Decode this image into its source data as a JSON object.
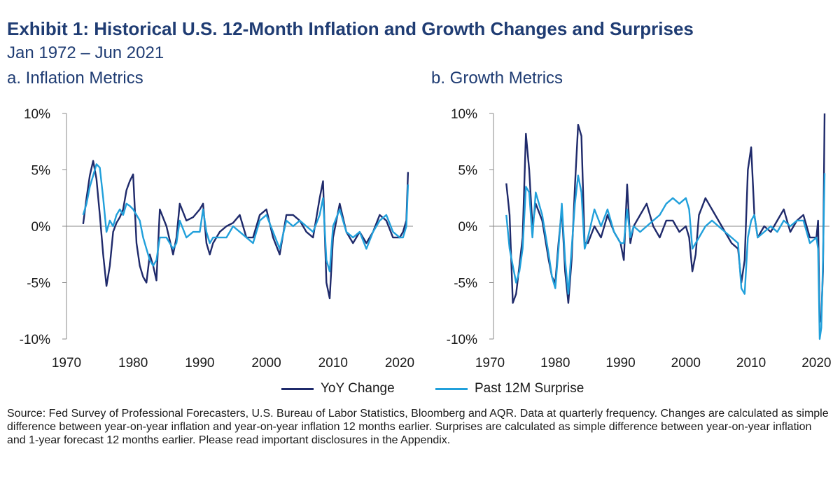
{
  "header": {
    "title": "Exhibit 1: Historical U.S. 12-Month Inflation and Growth Changes and Surprises",
    "subtitle": "Jan 1972 – Jun 2021"
  },
  "panels": [
    {
      "title": "a. Inflation Metrics"
    },
    {
      "title": "b. Growth Metrics"
    }
  ],
  "legend": [
    {
      "label": "YoY Change",
      "color": "#1f2a6b"
    },
    {
      "label": "Past 12M Surprise",
      "color": "#21a0db"
    }
  ],
  "source": "Source: Fed Survey of Professional Forecasters, U.S. Bureau of Labor Statistics, Bloomberg and AQR. Data at quarterly frequency. Changes are calculated as simple difference between year-on-year inflation and year-on-year inflation 12 months earlier. Surprises are calculated as simple difference between year-on-year inflation and 1-year forecast 12 months earlier. Please read important disclosures in the Appendix.",
  "chart_data": [
    {
      "type": "line",
      "title": "a. Inflation Metrics",
      "xlim": [
        1970,
        2022
      ],
      "ylim": [
        -10,
        10
      ],
      "x_ticks": [
        "1970",
        "1980",
        "1990",
        "2000",
        "2010",
        "2020"
      ],
      "y_ticks": [
        "10%",
        "5%",
        "0%",
        "-5%",
        "-10%"
      ],
      "grid": false,
      "series": [
        {
          "name": "YoY Change",
          "color": "#1f2a6b",
          "x": [
            1972.5,
            1973,
            1973.5,
            1974,
            1974.5,
            1975,
            1975.5,
            1976,
            1976.5,
            1977,
            1977.5,
            1978,
            1978.5,
            1979,
            1979.5,
            1980,
            1980.5,
            1981,
            1981.5,
            1982,
            1982.5,
            1983,
            1983.5,
            1984,
            1985,
            1986,
            1986.5,
            1987,
            1988,
            1989,
            1990,
            1990.5,
            1991,
            1991.5,
            1992,
            1993,
            1994,
            1995,
            1996,
            1997,
            1998,
            1999,
            2000,
            2001,
            2002,
            2003,
            2004,
            2005,
            2006,
            2007,
            2008,
            2008.5,
            2009,
            2009.5,
            2010,
            2011,
            2012,
            2013,
            2014,
            2015,
            2016,
            2017,
            2018,
            2019,
            2020,
            2020.5,
            2021,
            2021.25
          ],
          "values": [
            0.2,
            2.5,
            4.5,
            5.8,
            4.2,
            1.0,
            -2.5,
            -5.3,
            -3.5,
            -0.5,
            0.3,
            0.8,
            1.5,
            3.2,
            4.0,
            4.6,
            -1.5,
            -3.5,
            -4.5,
            -5.0,
            -2.5,
            -3.5,
            -4.8,
            1.5,
            0.0,
            -2.5,
            -1.0,
            2.0,
            0.5,
            0.8,
            1.5,
            2.0,
            -1.5,
            -2.5,
            -1.5,
            -0.5,
            0.0,
            0.3,
            1.0,
            -1.0,
            -1.0,
            1.0,
            1.5,
            -1.0,
            -2.5,
            1.0,
            1.0,
            0.5,
            -0.5,
            -1.0,
            2.5,
            4.0,
            -5.0,
            -6.4,
            -1.0,
            2.0,
            -0.5,
            -1.5,
            -0.5,
            -1.5,
            -0.5,
            1.0,
            0.5,
            -1.0,
            -1.0,
            -0.5,
            0.5,
            4.8
          ]
        },
        {
          "name": "Past 12M Surprise",
          "color": "#21a0db",
          "x": [
            1972.5,
            1973,
            1973.5,
            1974,
            1974.5,
            1975,
            1975.5,
            1976,
            1976.5,
            1977,
            1977.5,
            1978,
            1978.5,
            1979,
            1979.5,
            1980,
            1980.5,
            1981,
            1981.5,
            1982,
            1982.5,
            1983,
            1983.5,
            1984,
            1985,
            1986,
            1986.5,
            1987,
            1988,
            1989,
            1990,
            1990.5,
            1991,
            1991.5,
            1992,
            1993,
            1994,
            1995,
            1996,
            1997,
            1998,
            1999,
            2000,
            2001,
            2002,
            2003,
            2004,
            2005,
            2006,
            2007,
            2008,
            2008.5,
            2009,
            2009.5,
            2010,
            2011,
            2012,
            2013,
            2014,
            2015,
            2016,
            2017,
            2018,
            2019,
            2020,
            2020.5,
            2021,
            2021.25
          ],
          "values": [
            1.0,
            2.0,
            3.5,
            4.5,
            5.5,
            5.2,
            2.5,
            -0.5,
            0.5,
            0.0,
            1.0,
            1.5,
            1.0,
            2.0,
            1.8,
            1.5,
            1.0,
            0.5,
            -1.0,
            -2.0,
            -3.0,
            -3.5,
            -3.0,
            -1.0,
            -1.0,
            -2.0,
            -1.5,
            0.5,
            -1.0,
            -0.5,
            -0.5,
            1.5,
            -0.5,
            -1.5,
            -1.0,
            -1.0,
            -1.0,
            0.0,
            -0.5,
            -1.0,
            -1.5,
            0.5,
            1.0,
            -0.5,
            -2.0,
            0.5,
            0.0,
            0.5,
            0.0,
            -0.5,
            1.0,
            2.5,
            -3.0,
            -4.0,
            0.0,
            1.5,
            -0.5,
            -1.0,
            -0.5,
            -2.0,
            -0.5,
            0.5,
            1.0,
            -0.5,
            -1.0,
            -1.0,
            0.0,
            3.7
          ]
        }
      ]
    },
    {
      "type": "line",
      "title": "b. Growth Metrics",
      "xlim": [
        1970,
        2022
      ],
      "ylim": [
        -10,
        10
      ],
      "x_ticks": [
        "1970",
        "1980",
        "1990",
        "2000",
        "2010",
        "2020"
      ],
      "y_ticks": [
        "10%",
        "5%",
        "0%",
        "-5%",
        "-10%"
      ],
      "grid": false,
      "series": [
        {
          "name": "YoY Change",
          "color": "#1f2a6b",
          "x": [
            1972.5,
            1973,
            1973.5,
            1974,
            1974.5,
            1975,
            1975.5,
            1976,
            1976.5,
            1977,
            1978,
            1979,
            1979.5,
            1980,
            1980.5,
            1981,
            1981.5,
            1982,
            1982.5,
            1983,
            1983.5,
            1984,
            1984.5,
            1985,
            1986,
            1987,
            1988,
            1989,
            1990,
            1990.5,
            1991,
            1991.5,
            1992,
            1993,
            1994,
            1995,
            1996,
            1997,
            1998,
            1999,
            2000,
            2000.5,
            2001,
            2001.5,
            2002,
            2003,
            2004,
            2005,
            2006,
            2007,
            2008,
            2008.5,
            2009,
            2009.5,
            2010,
            2010.5,
            2011,
            2012,
            2013,
            2014,
            2015,
            2016,
            2017,
            2018,
            2019,
            2020,
            2020.25,
            2020.5,
            2020.75,
            2021,
            2021.25
          ],
          "values": [
            3.8,
            1.0,
            -6.8,
            -6.0,
            -3.5,
            -1.0,
            8.2,
            5.0,
            0.0,
            2.0,
            0.5,
            -3.0,
            -4.5,
            -5.0,
            -1.5,
            1.5,
            -4.0,
            -6.8,
            -3.0,
            3.5,
            9.0,
            8.0,
            -1.5,
            -1.5,
            0.0,
            -1.0,
            1.0,
            -0.5,
            -1.5,
            -3.0,
            3.7,
            -1.5,
            0.0,
            1.0,
            2.0,
            0.0,
            -1.0,
            0.5,
            0.5,
            -0.5,
            0.0,
            -1.0,
            -4.0,
            -2.5,
            1.0,
            2.5,
            1.5,
            0.5,
            -0.5,
            -1.5,
            -2.0,
            -5.0,
            -3.0,
            5.0,
            7.0,
            1.0,
            -1.0,
            0.0,
            -0.5,
            0.5,
            1.5,
            -0.5,
            0.5,
            1.0,
            -1.0,
            -1.0,
            0.5,
            -8.5,
            -8.0,
            -4.0,
            10.0
          ]
        },
        {
          "name": "Past 12M Surprise",
          "color": "#21a0db",
          "x": [
            1972.5,
            1973,
            1973.5,
            1974,
            1974.5,
            1975,
            1975.5,
            1976,
            1976.5,
            1977,
            1978,
            1979,
            1979.5,
            1980,
            1980.5,
            1981,
            1981.5,
            1982,
            1982.5,
            1983,
            1983.5,
            1984,
            1984.5,
            1985,
            1986,
            1987,
            1988,
            1989,
            1990,
            1990.5,
            1991,
            1991.5,
            1992,
            1993,
            1994,
            1995,
            1996,
            1997,
            1998,
            1999,
            2000,
            2000.5,
            2001,
            2001.5,
            2002,
            2003,
            2004,
            2005,
            2006,
            2007,
            2008,
            2008.5,
            2009,
            2009.5,
            2010,
            2010.5,
            2011,
            2012,
            2013,
            2014,
            2015,
            2016,
            2017,
            2018,
            2019,
            2020,
            2020.25,
            2020.5,
            2020.75,
            2021,
            2021.25
          ],
          "values": [
            1.0,
            -2.0,
            -3.5,
            -5.0,
            -4.0,
            -2.0,
            3.5,
            3.0,
            -1.0,
            3.0,
            1.0,
            -2.5,
            -4.5,
            -5.5,
            -2.0,
            2.0,
            -3.0,
            -6.0,
            -2.0,
            2.0,
            4.5,
            3.0,
            -2.0,
            -1.0,
            1.5,
            0.0,
            1.5,
            -0.5,
            -1.5,
            -1.5,
            1.5,
            -1.0,
            0.0,
            -0.5,
            0.0,
            0.5,
            1.0,
            2.0,
            2.5,
            2.0,
            2.5,
            1.5,
            -2.0,
            -1.5,
            -1.0,
            0.0,
            0.5,
            0.0,
            -0.5,
            -1.0,
            -1.5,
            -5.5,
            -6.0,
            -1.0,
            0.5,
            1.0,
            -1.0,
            -0.5,
            0.0,
            -0.5,
            0.5,
            0.0,
            0.5,
            0.5,
            -1.5,
            -1.0,
            -2.0,
            -10.0,
            -9.0,
            -3.0,
            4.7
          ]
        }
      ]
    }
  ]
}
